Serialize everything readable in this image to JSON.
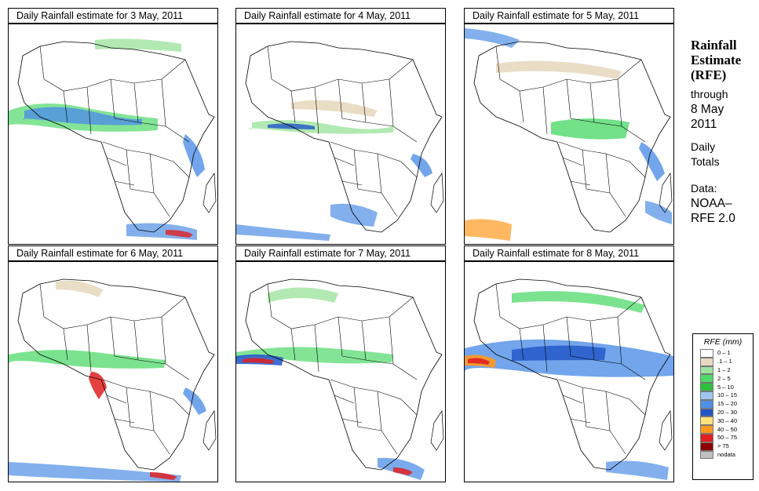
{
  "panels": [
    {
      "title": "Daily Rainfall estimate for  3 May, 2011"
    },
    {
      "title": "Daily Rainfall estimate for  4 May, 2011"
    },
    {
      "title": "Daily Rainfall estimate for  5 May, 2011"
    },
    {
      "title": "Daily Rainfall estimate for  6 May, 2011"
    },
    {
      "title": "Daily Rainfall estimate for  7 May, 2011"
    },
    {
      "title": "Daily Rainfall estimate for  8 May, 2011"
    }
  ],
  "side": {
    "title_line1": "Rainfall",
    "title_line2": "Estimate",
    "title_line3": "(RFE)",
    "through": "through",
    "date_line1": "8 May",
    "date_line2": "2011",
    "daily": "Daily",
    "totals": "Totals",
    "data_label": "Data:",
    "source_line1": "NOAA–",
    "source_line2": "RFE 2.0"
  },
  "legend": {
    "title": "RFE (mm)",
    "items": [
      {
        "label": "0 – 1",
        "color": "#ffffff"
      },
      {
        "label": ".1 – 1",
        "color": "#e8d9c0"
      },
      {
        "label": "1 – 2",
        "color": "#9fe39f"
      },
      {
        "label": "2 – 5",
        "color": "#4fd96a"
      },
      {
        "label": "5 – 10",
        "color": "#2fbf3f"
      },
      {
        "label": "10 – 15",
        "color": "#9ec6f2"
      },
      {
        "label": "15 – 20",
        "color": "#4f8fe6"
      },
      {
        "label": "20 – 30",
        "color": "#1f55c8"
      },
      {
        "label": "30 – 40",
        "color": "#ffe27a"
      },
      {
        "label": "40 – 50",
        "color": "#ff9a1f"
      },
      {
        "label": "50 – 75",
        "color": "#e02020"
      },
      {
        "label": "> 75",
        "color": "#8b0000"
      },
      {
        "label": "nodata",
        "color": "#c0c0c0"
      }
    ]
  }
}
